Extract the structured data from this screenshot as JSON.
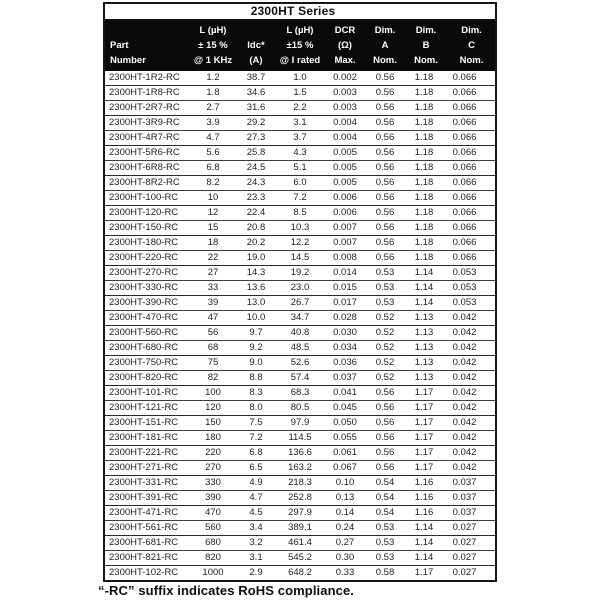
{
  "table": {
    "title": "2300HT Series",
    "columns": [
      {
        "l1": "",
        "l2": "Part",
        "l3": "Number"
      },
      {
        "l1": "L (µH)",
        "l2": "± 15 %",
        "l3": "@ 1 KHz"
      },
      {
        "l1": "",
        "l2": "Idc*",
        "l3": "(A)"
      },
      {
        "l1": "L (µH)",
        "l2": "±15 %",
        "l3": "@ I rated"
      },
      {
        "l1": "DCR",
        "l2": "(Ω)",
        "l3": "Max."
      },
      {
        "l1": "Dim.",
        "l2": "A",
        "l3": "Nom."
      },
      {
        "l1": "Dim.",
        "l2": "B",
        "l3": "Nom."
      },
      {
        "l1": "Dim.",
        "l2": "C",
        "l3": "Nom."
      }
    ],
    "rows": [
      [
        "2300HT-1R2-RC",
        "1.2",
        "38.7",
        "1.0",
        "0.002",
        "0.56",
        "1.18",
        "0.066"
      ],
      [
        "2300HT-1R8-RC",
        "1.8",
        "34.6",
        "1.5",
        "0.003",
        "0.56",
        "1.18",
        "0.066"
      ],
      [
        "2300HT-2R7-RC",
        "2.7",
        "31.6",
        "2.2",
        "0.003",
        "0.56",
        "1.18",
        "0.066"
      ],
      [
        "2300HT-3R9-RC",
        "3.9",
        "29.2",
        "3.1",
        "0.004",
        "0.56",
        "1.18",
        "0.066"
      ],
      [
        "2300HT-4R7-RC",
        "4.7",
        "27.3",
        "3.7",
        "0.004",
        "0.56",
        "1.18",
        "0.066"
      ],
      [
        "2300HT-5R6-RC",
        "5.6",
        "25.8",
        "4.3",
        "0.005",
        "0.56",
        "1.18",
        "0.066"
      ],
      [
        "2300HT-6R8-RC",
        "6.8",
        "24.5",
        "5.1",
        "0.005",
        "0.56",
        "1.18",
        "0.066"
      ],
      [
        "2300HT-8R2-RC",
        "8.2",
        "24.3",
        "6.0",
        "0.005",
        "0.56",
        "1.18",
        "0.066"
      ],
      [
        "2300HT-100-RC",
        "10",
        "23.3",
        "7.2",
        "0.006",
        "0.56",
        "1.18",
        "0.066"
      ],
      [
        "2300HT-120-RC",
        "12",
        "22.4",
        "8.5",
        "0.006",
        "0.56",
        "1.18",
        "0.066"
      ],
      [
        "2300HT-150-RC",
        "15",
        "20.8",
        "10.3",
        "0.007",
        "0.56",
        "1.18",
        "0.066"
      ],
      [
        "2300HT-180-RC",
        "18",
        "20.2",
        "12.2",
        "0.007",
        "0.56",
        "1.18",
        "0.066"
      ],
      [
        "2300HT-220-RC",
        "22",
        "19.0",
        "14.5",
        "0.008",
        "0.56",
        "1.18",
        "0.066"
      ],
      [
        "2300HT-270-RC",
        "27",
        "14.3",
        "19.2",
        "0.014",
        "0.53",
        "1.14",
        "0.053"
      ],
      [
        "2300HT-330-RC",
        "33",
        "13.6",
        "23.0",
        "0.015",
        "0.53",
        "1.14",
        "0.053"
      ],
      [
        "2300HT-390-RC",
        "39",
        "13.0",
        "26.7",
        "0.017",
        "0.53",
        "1.14",
        "0.053"
      ],
      [
        "2300HT-470-RC",
        "47",
        "10.0",
        "34.7",
        "0.028",
        "0.52",
        "1.13",
        "0.042"
      ],
      [
        "2300HT-560-RC",
        "56",
        "9.7",
        "40.8",
        "0.030",
        "0.52",
        "1.13",
        "0.042"
      ],
      [
        "2300HT-680-RC",
        "68",
        "9.2",
        "48.5",
        "0.034",
        "0.52",
        "1.13",
        "0.042"
      ],
      [
        "2300HT-750-RC",
        "75",
        "9.0",
        "52.6",
        "0.036",
        "0.52",
        "1.13",
        "0.042"
      ],
      [
        "2300HT-820-RC",
        "82",
        "8.8",
        "57.4",
        "0.037",
        "0.52",
        "1.13",
        "0.042"
      ],
      [
        "2300HT-101-RC",
        "100",
        "8.3",
        "68.3",
        "0.041",
        "0.56",
        "1.17",
        "0.042"
      ],
      [
        "2300HT-121-RC",
        "120",
        "8.0",
        "80.5",
        "0.045",
        "0.56",
        "1.17",
        "0.042"
      ],
      [
        "2300HT-151-RC",
        "150",
        "7.5",
        "97.9",
        "0.050",
        "0.56",
        "1.17",
        "0.042"
      ],
      [
        "2300HT-181-RC",
        "180",
        "7.2",
        "114.5",
        "0.055",
        "0.56",
        "1.17",
        "0.042"
      ],
      [
        "2300HT-221-RC",
        "220",
        "6.8",
        "136.6",
        "0.061",
        "0.56",
        "1.17",
        "0.042"
      ],
      [
        "2300HT-271-RC",
        "270",
        "6.5",
        "163.2",
        "0.067",
        "0.56",
        "1.17",
        "0.042"
      ],
      [
        "2300HT-331-RC",
        "330",
        "4.9",
        "218.3",
        "0.10",
        "0.54",
        "1.16",
        "0.037"
      ],
      [
        "2300HT-391-RC",
        "390",
        "4.7",
        "252.8",
        "0.13",
        "0.54",
        "1.16",
        "0.037"
      ],
      [
        "2300HT-471-RC",
        "470",
        "4.5",
        "297.9",
        "0.14",
        "0.54",
        "1.16",
        "0.037"
      ],
      [
        "2300HT-561-RC",
        "560",
        "3.4",
        "389.1",
        "0.24",
        "0.53",
        "1.14",
        "0.027"
      ],
      [
        "2300HT-681-RC",
        "680",
        "3.2",
        "461.4",
        "0.27",
        "0.53",
        "1.14",
        "0.027"
      ],
      [
        "2300HT-821-RC",
        "820",
        "3.1",
        "545.2",
        "0.30",
        "0.53",
        "1.14",
        "0.027"
      ],
      [
        "2300HT-102-RC",
        "1000",
        "2.9",
        "648.2",
        "0.33",
        "0.58",
        "1.17",
        "0.027"
      ]
    ]
  },
  "footnote": "“-RC” suffix indicates RoHS compliance.",
  "colors": {
    "header_bg": "#0a0a0a",
    "header_text": "#ffffff",
    "body_text": "#1d1d1d",
    "border": "#161616"
  }
}
